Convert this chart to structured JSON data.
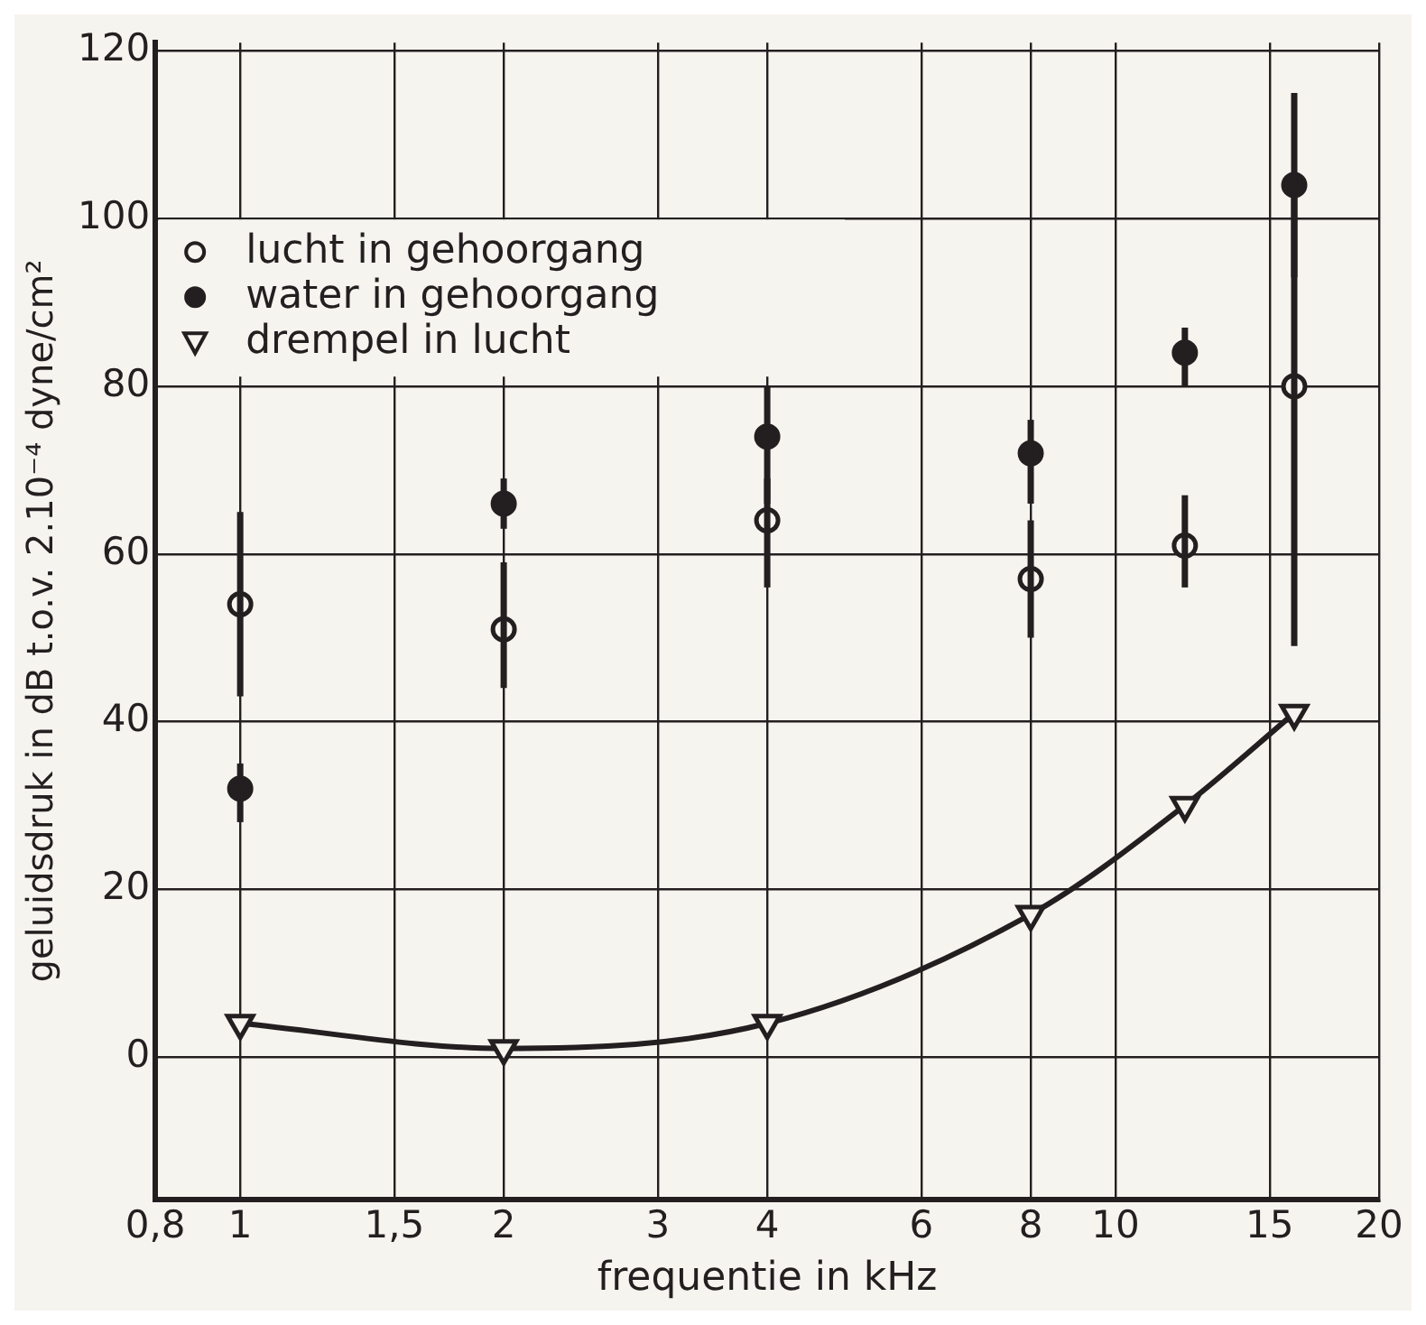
{
  "chart_data": {
    "type": "scatter",
    "xlabel": "frequentie in kHz",
    "ylabel": "geluidsdruk in dB t.o.v. 2.10⁻⁴ dyne/cm²",
    "log": "x",
    "xlim": [
      0.8,
      20
    ],
    "xticks": [
      {
        "value": 0.8,
        "label": "0,8"
      },
      1,
      {
        "value": 1.5,
        "label": "1,5"
      },
      2,
      3,
      4,
      6,
      8,
      10,
      15,
      20
    ],
    "ylim": [
      -17,
      121
    ],
    "yticks": [
      0,
      20,
      40,
      60,
      80,
      100,
      120
    ],
    "grid": true,
    "legend": "top left",
    "marker": "circle",
    "series": [
      {
        "name": "lucht in gehoorgang",
        "color": "#231f20",
        "x": [
          1,
          2,
          4,
          8,
          12,
          16
        ],
        "values": [
          54,
          51,
          64,
          57,
          61,
          80
        ],
        "errors": [
          [
            43,
            65
          ],
          [
            44,
            59
          ],
          [
            56,
            69
          ],
          [
            50,
            64
          ],
          [
            56,
            67
          ],
          [
            49,
            105
          ]
        ]
      },
      {
        "name": "water in gehoorgang",
        "color": "#231f20",
        "x": [
          1,
          2,
          4,
          8,
          12,
          16
        ],
        "values": [
          32,
          66,
          74,
          72,
          84,
          104
        ],
        "errors": [
          [
            28,
            35
          ],
          [
            63,
            69
          ],
          [
            66,
            80
          ],
          [
            66,
            76
          ],
          [
            80,
            87
          ],
          [
            93,
            115
          ]
        ]
      },
      {
        "name": "drempel in lucht",
        "type": "line",
        "marker": "triangle",
        "line_style": "solid",
        "color": "#231f20",
        "x": [
          1,
          2,
          4,
          8,
          12,
          16
        ],
        "values": [
          4,
          1,
          4,
          17,
          30,
          41
        ]
      }
    ]
  }
}
